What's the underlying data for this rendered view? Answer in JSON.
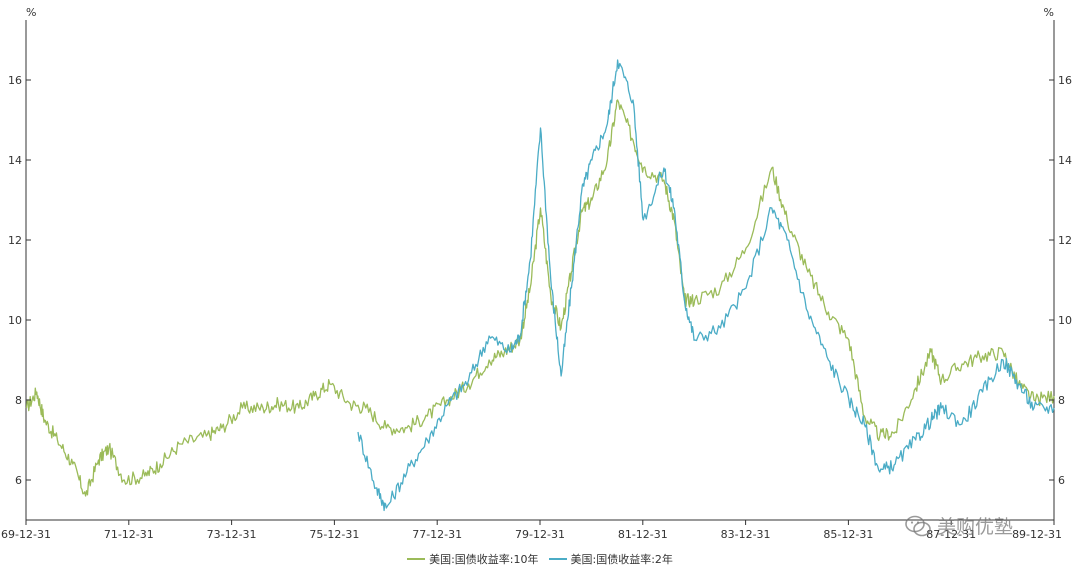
{
  "chart_data": {
    "type": "line",
    "ylabel_left": "%",
    "ylabel_right": "%",
    "ylim": [
      5,
      17.5
    ],
    "y_ticks": [
      6,
      8,
      10,
      12,
      14,
      16
    ],
    "x_tick_labels": [
      "69-12-31",
      "71-12-31",
      "73-12-31",
      "75-12-31",
      "77-12-31",
      "79-12-31",
      "81-12-31",
      "83-12-31",
      "85-12-31",
      "87-12-31",
      "89-12-31"
    ],
    "xlim": [
      1969.99,
      1989.99
    ],
    "grid": false,
    "legend_position": "bottom",
    "series": [
      {
        "name": "美国:国债收益率:10年",
        "color": "#9bbb59",
        "x": [
          1970.0,
          1970.2,
          1970.35,
          1970.6,
          1970.9,
          1971.15,
          1971.4,
          1971.6,
          1971.9,
          1972.3,
          1972.6,
          1973.0,
          1973.5,
          1973.8,
          1974.2,
          1974.6,
          1974.9,
          1975.3,
          1975.6,
          1975.9,
          1976.3,
          1976.6,
          1977.0,
          1977.4,
          1977.8,
          1978.2,
          1978.6,
          1979.0,
          1979.3,
          1979.6,
          1979.8,
          1980.0,
          1980.2,
          1980.4,
          1980.6,
          1980.8,
          1981.0,
          1981.3,
          1981.5,
          1981.8,
          1982.0,
          1982.4,
          1982.6,
          1982.8,
          1983.0,
          1983.5,
          1984.0,
          1984.5,
          1984.8,
          1985.2,
          1985.6,
          1986.0,
          1986.3,
          1986.6,
          1986.9,
          1987.3,
          1987.6,
          1987.8,
          1988.2,
          1988.6,
          1989.0,
          1989.3,
          1989.6,
          1989.99
        ],
        "values": [
          7.8,
          8.2,
          7.5,
          7.0,
          6.4,
          5.6,
          6.5,
          6.8,
          6.0,
          6.1,
          6.4,
          6.9,
          7.1,
          7.3,
          7.8,
          7.8,
          7.9,
          7.8,
          8.1,
          8.4,
          7.9,
          7.8,
          7.3,
          7.3,
          7.6,
          8.0,
          8.4,
          9.0,
          9.2,
          9.5,
          10.8,
          12.8,
          10.6,
          9.8,
          11.2,
          12.7,
          13.0,
          14.0,
          15.5,
          14.5,
          13.8,
          13.5,
          12.5,
          10.5,
          10.5,
          10.8,
          11.8,
          13.8,
          12.5,
          11.2,
          10.2,
          9.5,
          7.6,
          7.1,
          7.2,
          8.3,
          9.2,
          8.5,
          8.9,
          9.1,
          9.2,
          8.4,
          8.0,
          8.1
        ]
      },
      {
        "name": "美国:国债收益率:2年",
        "color": "#4bacc6",
        "x": [
          1976.45,
          1976.8,
          1977.0,
          1977.4,
          1977.8,
          1978.2,
          1978.6,
          1979.0,
          1979.4,
          1979.6,
          1979.8,
          1980.0,
          1980.2,
          1980.4,
          1980.6,
          1980.8,
          1981.0,
          1981.3,
          1981.5,
          1981.8,
          1982.0,
          1982.4,
          1982.6,
          1982.8,
          1983.0,
          1983.5,
          1984.0,
          1984.5,
          1984.8,
          1985.2,
          1985.6,
          1986.0,
          1986.3,
          1986.6,
          1986.9,
          1987.3,
          1987.6,
          1987.8,
          1988.2,
          1988.6,
          1989.0,
          1989.3,
          1989.6,
          1989.99
        ],
        "values": [
          7.2,
          5.8,
          5.3,
          6.2,
          7.0,
          7.9,
          8.5,
          9.6,
          9.2,
          9.6,
          11.5,
          14.8,
          11.0,
          8.6,
          10.8,
          13.2,
          14.0,
          14.9,
          16.5,
          15.5,
          12.5,
          13.8,
          12.8,
          10.5,
          9.5,
          9.8,
          10.8,
          12.8,
          12.0,
          10.2,
          9.0,
          8.0,
          7.4,
          6.2,
          6.4,
          7.0,
          7.5,
          7.8,
          7.4,
          8.2,
          9.0,
          8.4,
          7.8,
          7.8
        ]
      }
    ]
  },
  "watermark": {
    "text": "美购优塾"
  }
}
